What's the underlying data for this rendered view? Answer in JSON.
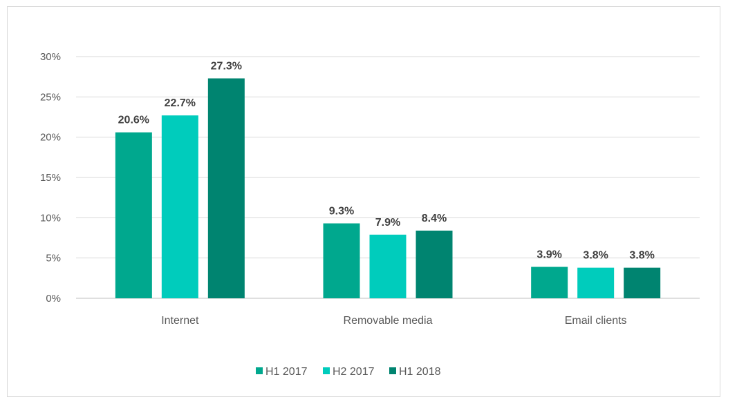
{
  "chart_data": {
    "type": "bar",
    "categories": [
      "Internet",
      "Removable media",
      "Email clients"
    ],
    "series": [
      {
        "name": "H1 2017",
        "values": [
          20.6,
          9.3,
          3.9
        ],
        "labels": [
          "20.6%",
          "9.3%",
          "3.9%"
        ],
        "color": "#00a88e"
      },
      {
        "name": "H2 2017",
        "values": [
          22.7,
          7.9,
          3.8
        ],
        "labels": [
          "22.7%",
          "7.9%",
          "3.8%"
        ],
        "color": "#00ccbc"
      },
      {
        "name": "H1 2018",
        "values": [
          27.3,
          8.4,
          3.8
        ],
        "labels": [
          "27.3%",
          "8.4%",
          "3.8%"
        ],
        "color": "#008470"
      }
    ],
    "yticks": [
      "0%",
      "5%",
      "10%",
      "15%",
      "20%",
      "25%",
      "30%"
    ],
    "ylim": [
      0,
      30
    ],
    "grid": true,
    "legend_position": "bottom"
  }
}
